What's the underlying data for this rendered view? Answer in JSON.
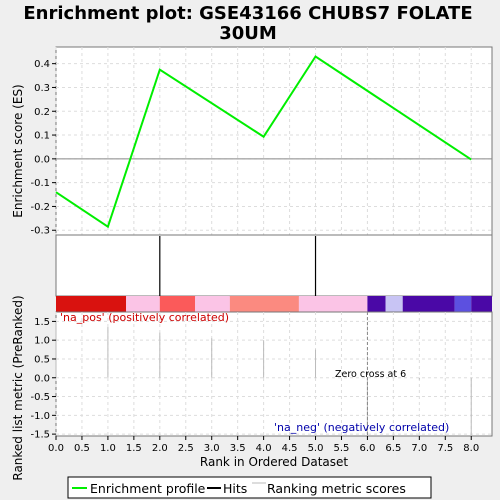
{
  "chart_data": {
    "type": "line",
    "title_lines": [
      "Enrichment plot: GSE43166 CHUBS7 FOLATE",
      "30UM"
    ],
    "top_panel": {
      "ylabel": "Enrichment score (ES)",
      "ylim": [
        -0.32,
        0.47
      ],
      "yticks": [
        0.4,
        0.3,
        0.2,
        0.1,
        0.0,
        -0.1,
        -0.2,
        -0.3
      ],
      "ytick_labels": [
        "0.4",
        "0.3",
        "0.2",
        "0.1",
        "0.0",
        "-0.1",
        "-0.2",
        "-0.3"
      ],
      "series": [
        {
          "name": "Enrichment profile",
          "color": "#00ee00",
          "x": [
            0.0,
            1.0,
            2.0,
            4.0,
            5.0,
            8.0
          ],
          "y": [
            -0.14,
            -0.285,
            0.375,
            0.093,
            0.43,
            -0.003
          ]
        }
      ],
      "zero_line": 0.0
    },
    "hits": [
      2.0,
      5.0
    ],
    "heat_bar": [
      {
        "from": 0.0,
        "to": 1.35,
        "color": "#d9120f"
      },
      {
        "from": 1.35,
        "to": 2.0,
        "color": "#fbc4e6"
      },
      {
        "from": 2.0,
        "to": 2.68,
        "color": "#fb5a5a"
      },
      {
        "from": 2.68,
        "to": 3.35,
        "color": "#fbc4e6"
      },
      {
        "from": 3.35,
        "to": 4.68,
        "color": "#fb8a80"
      },
      {
        "from": 4.68,
        "to": 6.0,
        "color": "#fbc4e6"
      },
      {
        "from": 6.0,
        "to": 6.35,
        "color": "#4a08a6"
      },
      {
        "from": 6.35,
        "to": 6.68,
        "color": "#c8c4f4"
      },
      {
        "from": 6.68,
        "to": 7.68,
        "color": "#4a08a6"
      },
      {
        "from": 7.68,
        "to": 8.0,
        "color": "#5c50e0"
      },
      {
        "from": 8.0,
        "to": 8.4,
        "color": "#4a08a6"
      }
    ],
    "bottom_panel": {
      "ylabel": "Ranked list metric (PreRanked)",
      "ylim": [
        -1.55,
        1.75
      ],
      "yticks": [
        1.5,
        1.0,
        0.5,
        0.0,
        -0.5,
        -1.0,
        -1.5
      ],
      "ytick_labels": [
        "1.5",
        "1.0",
        "0.5",
        "0.0",
        "-0.5",
        "-1.0",
        "-1.5"
      ],
      "metric_x": [
        0,
        1,
        2,
        3,
        4,
        5,
        6,
        7,
        8
      ],
      "metric_y": [
        1.5,
        1.35,
        1.2,
        1.05,
        1.0,
        0.75,
        -1.5,
        -0.05,
        -1.55
      ],
      "zero_cross": 6.0,
      "zero_cross_label": "Zero cross at 6",
      "pos_label": "'na_pos' (positively correlated)",
      "neg_label": "'na_neg' (negatively correlated)",
      "pos_color": "#cc0000",
      "neg_color": "#0000aa"
    },
    "xlabel": "Rank in Ordered Dataset",
    "xlim": [
      0,
      8.4
    ],
    "xticks": [
      0,
      0.5,
      1,
      1.5,
      2,
      2.5,
      3,
      3.5,
      4,
      4.5,
      5,
      5.5,
      6,
      6.5,
      7,
      7.5,
      8
    ],
    "xtick_labels": [
      "0.0",
      "0.5",
      "1.0",
      "1.5",
      "2.0",
      "2.5",
      "3.0",
      "3.5",
      "4.0",
      "4.5",
      "5.0",
      "5.5",
      "6.0",
      "6.5",
      "7.0",
      "7.5",
      "8.0"
    ],
    "legend": [
      {
        "label": "Enrichment profile",
        "color": "#00ee00",
        "kind": "line"
      },
      {
        "label": "Hits",
        "color": "#000000",
        "kind": "line"
      },
      {
        "label": "Ranking metric scores",
        "color": "#bbbbbb",
        "kind": "line"
      }
    ]
  }
}
